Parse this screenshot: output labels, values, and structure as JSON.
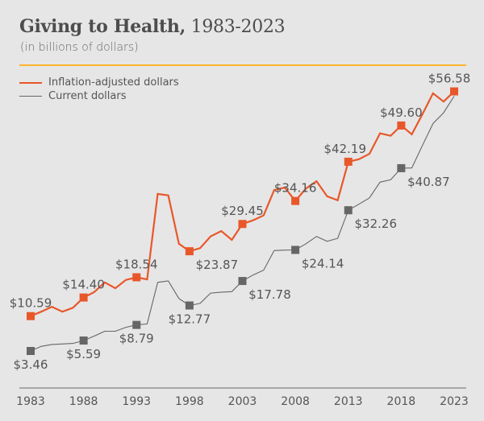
{
  "chart_data": {
    "type": "line",
    "title_bold": "Giving to Health,",
    "title_rest": " 1983-2023",
    "subtitle": "(in billions of dollars)",
    "xlabel": "",
    "ylabel": "",
    "xlim": [
      1983,
      2023
    ],
    "ylim": [
      0,
      60
    ],
    "grid": false,
    "legend_position": "top-left",
    "x_ticks": [
      "1983",
      "1988",
      "1993",
      "1998",
      "2003",
      "2008",
      "2013",
      "2018",
      "2023"
    ],
    "x": [
      1983,
      1984,
      1985,
      1986,
      1987,
      1988,
      1989,
      1990,
      1991,
      1992,
      1993,
      1994,
      1995,
      1996,
      1997,
      1998,
      1999,
      2000,
      2001,
      2002,
      2003,
      2004,
      2005,
      2006,
      2007,
      2008,
      2009,
      2010,
      2011,
      2012,
      2013,
      2014,
      2015,
      2016,
      2017,
      2018,
      2019,
      2020,
      2021,
      2022,
      2023
    ],
    "series": [
      {
        "name": "Inflation-adjusted dollars",
        "color": "#e8572a",
        "values": [
          10.59,
          11.5,
          12.5,
          11.5,
          12.3,
          14.4,
          15.5,
          17.5,
          16.3,
          18.0,
          18.54,
          18.1,
          35.6,
          35.3,
          25.4,
          23.87,
          24.5,
          26.9,
          28.0,
          26.2,
          29.45,
          30.2,
          31.2,
          36.4,
          36.9,
          34.16,
          36.7,
          38.2,
          35.1,
          34.3,
          42.19,
          42.7,
          43.8,
          48.0,
          47.5,
          49.6,
          47.8,
          51.9,
          56.2,
          54.5,
          56.58
        ],
        "markers": [
          {
            "year": 1983,
            "value": 10.59,
            "label": "$10.59",
            "pos": "above"
          },
          {
            "year": 1988,
            "value": 14.4,
            "label": "$14.40",
            "pos": "above"
          },
          {
            "year": 1993,
            "value": 18.54,
            "label": "$18.54",
            "pos": "above"
          },
          {
            "year": 1998,
            "value": 23.87,
            "label": "$23.87",
            "pos": "below"
          },
          {
            "year": 2003,
            "value": 29.45,
            "label": "$29.45",
            "pos": "above"
          },
          {
            "year": 2008,
            "value": 34.16,
            "label": "$34.16",
            "pos": "above"
          },
          {
            "year": 2013,
            "value": 42.19,
            "label": "$42.19",
            "pos": "above"
          },
          {
            "year": 2018,
            "value": 49.6,
            "label": "$49.60",
            "pos": "above"
          },
          {
            "year": 2023,
            "value": 56.58,
            "label": "$56.58",
            "pos": "above"
          }
        ]
      },
      {
        "name": "Current dollars",
        "color": "#666666",
        "values": [
          3.46,
          4.4,
          4.8,
          4.9,
          5.0,
          5.59,
          6.5,
          7.5,
          7.5,
          8.3,
          8.79,
          9.0,
          17.5,
          17.8,
          14.2,
          12.77,
          13.2,
          15.3,
          15.5,
          15.6,
          17.78,
          19.0,
          20.0,
          24.0,
          24.1,
          24.14,
          25.4,
          26.9,
          25.9,
          26.5,
          32.26,
          33.5,
          34.8,
          38.0,
          38.5,
          40.87,
          40.9,
          45.5,
          50.0,
          52.2,
          55.6
        ],
        "markers": [
          {
            "year": 1983,
            "value": 3.46,
            "label": "$3.46",
            "pos": "below"
          },
          {
            "year": 1988,
            "value": 5.59,
            "label": "$5.59",
            "pos": "below"
          },
          {
            "year": 1993,
            "value": 8.79,
            "label": "$8.79",
            "pos": "below"
          },
          {
            "year": 1998,
            "value": 12.77,
            "label": "$12.77",
            "pos": "below"
          },
          {
            "year": 2003,
            "value": 17.78,
            "label": "$17.78",
            "pos": "below"
          },
          {
            "year": 2008,
            "value": 24.14,
            "label": "$24.14",
            "pos": "below"
          },
          {
            "year": 2013,
            "value": 32.26,
            "label": "$32.26",
            "pos": "below"
          },
          {
            "year": 2018,
            "value": 40.87,
            "label": "$40.87",
            "pos": "below"
          }
        ]
      }
    ]
  }
}
